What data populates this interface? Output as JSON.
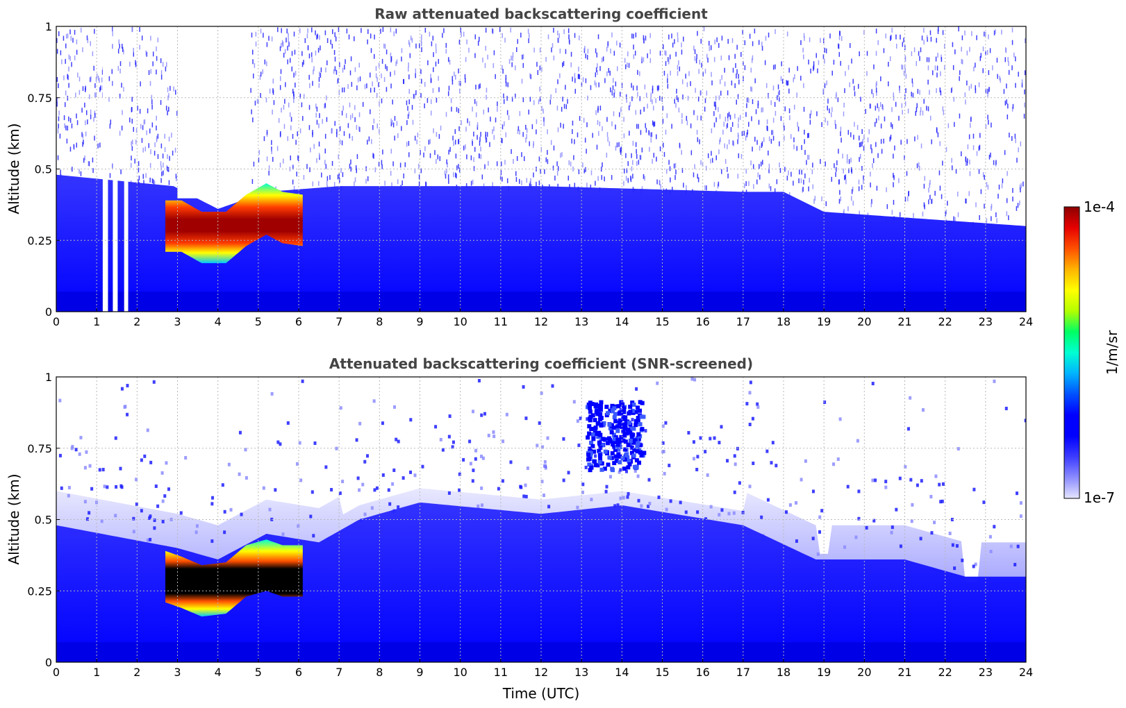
{
  "chart_data": [
    {
      "type": "heatmap",
      "title": "Raw attenuated backscattering coefficient",
      "xlabel": "",
      "ylabel": "Altitude (km)",
      "xlim": [
        0,
        24
      ],
      "ylim": [
        0,
        1
      ],
      "x_ticks": [
        "0",
        "1",
        "2",
        "3",
        "4",
        "5",
        "6",
        "7",
        "8",
        "9",
        "10",
        "11",
        "12",
        "13",
        "14",
        "15",
        "16",
        "17",
        "18",
        "19",
        "20",
        "21",
        "22",
        "23",
        "24"
      ],
      "y_ticks": [
        "0",
        "0.25",
        "0.5",
        "0.75",
        "1"
      ],
      "grid": true,
      "colormap": "white-blue-cyan-yellow-red",
      "features": {
        "boundary_layer_top_km": [
          {
            "t": 0,
            "z": 0.48
          },
          {
            "t": 2.9,
            "z": 0.44
          },
          {
            "t": 4,
            "z": 0.36
          },
          {
            "t": 5.2,
            "z": 0.42
          },
          {
            "t": 7,
            "z": 0.44
          },
          {
            "t": 12,
            "z": 0.44
          },
          {
            "t": 17,
            "z": 0.42
          },
          {
            "t": 18,
            "z": 0.42
          },
          {
            "t": 19,
            "z": 0.35
          },
          {
            "t": 21,
            "z": 0.33
          },
          {
            "t": 24,
            "z": 0.3
          }
        ],
        "aerosol_layer_center_km": [
          {
            "t": 2.7,
            "z": 0.3
          },
          {
            "t": 3.1,
            "z": 0.3
          },
          {
            "t": 3.6,
            "z": 0.26
          },
          {
            "t": 4.2,
            "z": 0.26
          },
          {
            "t": 4.7,
            "z": 0.32
          },
          {
            "t": 5.2,
            "z": 0.36
          },
          {
            "t": 5.6,
            "z": 0.33
          },
          {
            "t": 6.1,
            "z": 0.32
          }
        ],
        "data_gaps_hours": [
          [
            1.15,
            1.28
          ],
          [
            1.4,
            1.52
          ],
          [
            1.68,
            1.78
          ],
          [
            3.0,
            4.8
          ]
        ]
      }
    },
    {
      "type": "heatmap",
      "title": "Attenuated backscattering coefficient (SNR-screened)",
      "xlabel": "Time (UTC)",
      "ylabel": "Altitude (km)",
      "xlim": [
        0,
        24
      ],
      "ylim": [
        0,
        1
      ],
      "x_ticks": [
        "0",
        "1",
        "2",
        "3",
        "4",
        "5",
        "6",
        "7",
        "8",
        "9",
        "10",
        "11",
        "12",
        "13",
        "14",
        "15",
        "16",
        "17",
        "18",
        "19",
        "20",
        "21",
        "22",
        "23",
        "24"
      ],
      "y_ticks": [
        "0",
        "0.25",
        "0.5",
        "0.75",
        "1"
      ],
      "grid": true,
      "colormap": "white-blue-cyan-yellow-red",
      "features": {
        "boundary_layer_top_km": [
          {
            "t": 0,
            "z": 0.48
          },
          {
            "t": 3,
            "z": 0.4
          },
          {
            "t": 4,
            "z": 0.36
          },
          {
            "t": 5.2,
            "z": 0.45
          },
          {
            "t": 6.5,
            "z": 0.42
          },
          {
            "t": 7.5,
            "z": 0.5
          },
          {
            "t": 9,
            "z": 0.56
          },
          {
            "t": 12,
            "z": 0.52
          },
          {
            "t": 14,
            "z": 0.55
          },
          {
            "t": 17,
            "z": 0.48
          },
          {
            "t": 18.8,
            "z": 0.36
          },
          {
            "t": 21,
            "z": 0.36
          },
          {
            "t": 22.5,
            "z": 0.3
          },
          {
            "t": 24,
            "z": 0.3
          }
        ],
        "cloud_patch": {
          "t_start": 13.1,
          "t_end": 14.5,
          "z_bottom": 0.68,
          "z_top": 0.92
        },
        "saturated_layer_center_km": [
          {
            "t": 2.7,
            "z": 0.3
          },
          {
            "t": 3.1,
            "z": 0.28
          },
          {
            "t": 3.6,
            "z": 0.25
          },
          {
            "t": 4.2,
            "z": 0.26
          },
          {
            "t": 4.7,
            "z": 0.32
          },
          {
            "t": 5.2,
            "z": 0.34
          },
          {
            "t": 5.6,
            "z": 0.32
          },
          {
            "t": 6.1,
            "z": 0.32
          }
        ]
      }
    }
  ],
  "colorbar": {
    "max_label": "1e-4",
    "min_label": "1e-7",
    "unit": "1/m/sr",
    "stops": [
      "#e6e6ff",
      "#8c8cff",
      "#3c3cff",
      "#0000ff",
      "#0000ff",
      "#0050ff",
      "#00b4ff",
      "#00ffd2",
      "#00ff64",
      "#b4ff00",
      "#ffff00",
      "#ffb400",
      "#ff5000",
      "#e60000",
      "#8c0000"
    ]
  }
}
